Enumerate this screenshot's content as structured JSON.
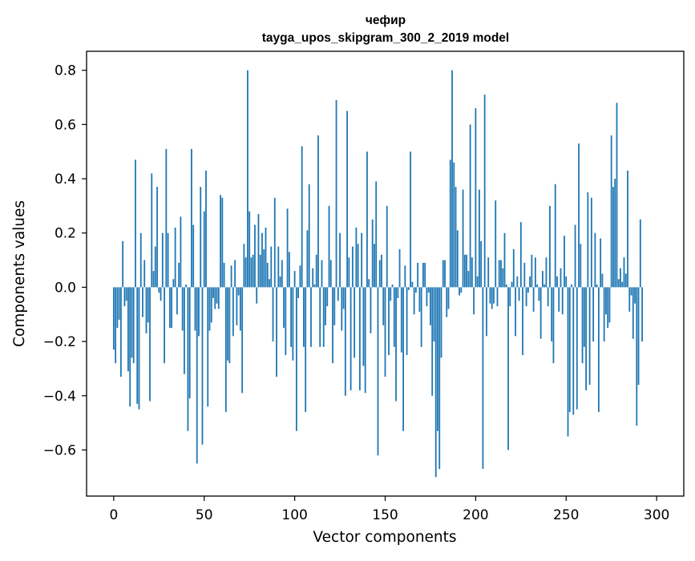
{
  "chart_data": {
    "type": "bar",
    "title": "чефир",
    "subtitle": "tayga_upos_skipgram_300_2_2019 model",
    "xlabel": "Vector components",
    "ylabel": "Components values",
    "xlim": [
      -15,
      315
    ],
    "ylim": [
      -0.77,
      0.87
    ],
    "xticks": [
      0,
      50,
      100,
      150,
      200,
      250,
      300
    ],
    "yticks": [
      -0.6,
      -0.4,
      -0.2,
      0.0,
      0.2,
      0.4,
      0.6,
      0.8
    ],
    "ytick_labels": [
      "−0.6",
      "−0.4",
      "−0.2",
      "0.0",
      "0.2",
      "0.4",
      "0.6",
      "0.8"
    ],
    "bar_color": "#1f77b4",
    "x": "0..299",
    "values": [
      -0.23,
      -0.28,
      -0.15,
      -0.12,
      -0.33,
      0.17,
      -0.07,
      -0.05,
      -0.31,
      -0.44,
      -0.26,
      -0.28,
      0.47,
      -0.43,
      -0.45,
      0.2,
      -0.11,
      0.1,
      -0.17,
      -0.13,
      -0.42,
      0.42,
      0.06,
      0.15,
      0.37,
      -0.02,
      -0.05,
      0.2,
      -0.28,
      0.51,
      0.2,
      -0.15,
      -0.15,
      0.03,
      0.22,
      -0.1,
      0.09,
      0.26,
      -0.16,
      -0.32,
      0.01,
      -0.53,
      -0.41,
      0.51,
      0.23,
      -0.16,
      -0.65,
      -0.18,
      0.37,
      -0.58,
      0.28,
      0.43,
      -0.44,
      -0.16,
      -0.13,
      -0.04,
      -0.08,
      -0.06,
      -0.08,
      0.34,
      0.33,
      0.09,
      -0.46,
      -0.27,
      -0.28,
      0.08,
      -0.18,
      0.1,
      -0.14,
      -0.03,
      -0.16,
      -0.39,
      0.16,
      0.11,
      0.8,
      0.28,
      0.11,
      0.12,
      0.23,
      -0.06,
      0.27,
      0.12,
      0.2,
      0.14,
      0.22,
      0.09,
      0.03,
      0.15,
      -0.2,
      0.33,
      -0.33,
      0.15,
      0.04,
      0.1,
      -0.15,
      -0.25,
      0.29,
      0.13,
      -0.22,
      -0.27,
      0.06,
      -0.53,
      -0.04,
      0.08,
      0.52,
      -0.22,
      -0.46,
      0.21,
      0.38,
      -0.22,
      0.07,
      0.01,
      0.12,
      0.56,
      -0.22,
      0.1,
      -0.22,
      -0.14,
      -0.07,
      0.3,
      0.1,
      -0.28,
      -0.14,
      0.69,
      -0.05,
      0.2,
      -0.16,
      -0.08,
      -0.4,
      0.65,
      0.11,
      -0.38,
      0.15,
      -0.26,
      0.22,
      0.16,
      -0.38,
      0.2,
      -0.29,
      -0.39,
      0.5,
      0.03,
      -0.17,
      0.25,
      0.16,
      0.39,
      -0.62,
      0.1,
      0.12,
      -0.14,
      -0.33,
      0.3,
      -0.25,
      -0.05,
      0.01,
      -0.22,
      -0.42,
      -0.04,
      0.14,
      -0.24,
      -0.53,
      0.08,
      -0.25,
      -0.01,
      0.5,
      0.02,
      -0.1,
      -0.02,
      0.09,
      -0.09,
      -0.22,
      0.09,
      0.09,
      -0.07,
      -0.02,
      -0.14,
      -0.4,
      -0.2,
      -0.7,
      -0.53,
      -0.67,
      -0.26,
      0.1,
      0.1,
      -0.11,
      -0.08,
      0.47,
      0.8,
      0.46,
      0.37,
      0.21,
      -0.03,
      -0.02,
      0.36,
      0.12,
      0.12,
      0.06,
      0.6,
      0.11,
      -0.1,
      0.66,
      0.04,
      0.36,
      0.17,
      -0.67,
      0.71,
      -0.18,
      0.11,
      -0.06,
      -0.08,
      -0.06,
      0.32,
      -0.07,
      0.1,
      0.1,
      0.07,
      0.2,
      0.01,
      -0.6,
      -0.07,
      0.02,
      0.14,
      -0.18,
      0.04,
      -0.05,
      0.24,
      -0.25,
      0.09,
      -0.07,
      -0.02,
      0.04,
      0.12,
      -0.09,
      0.11,
      0.01,
      -0.05,
      -0.19,
      0.06,
      0.01,
      0.11,
      -0.07,
      0.3,
      -0.2,
      -0.28,
      0.38,
      0.04,
      -0.09,
      0.07,
      -0.1,
      0.19,
      0.04,
      -0.55,
      -0.46,
      0.01,
      -0.47,
      0.23,
      -0.45,
      0.53,
      0.16,
      -0.28,
      -0.22,
      -0.38,
      0.35,
      -0.36,
      0.33,
      -0.2,
      0.2,
      0.01,
      -0.46,
      0.18,
      0.05,
      -0.2,
      -0.1,
      -0.15,
      -0.13,
      0.56,
      0.37,
      0.4,
      0.68,
      0.03,
      0.07,
      0.02,
      0.11,
      0.05,
      0.43,
      -0.09,
      -0.03,
      -0.19,
      -0.06,
      -0.51,
      -0.36,
      0.25,
      -0.2
    ]
  }
}
